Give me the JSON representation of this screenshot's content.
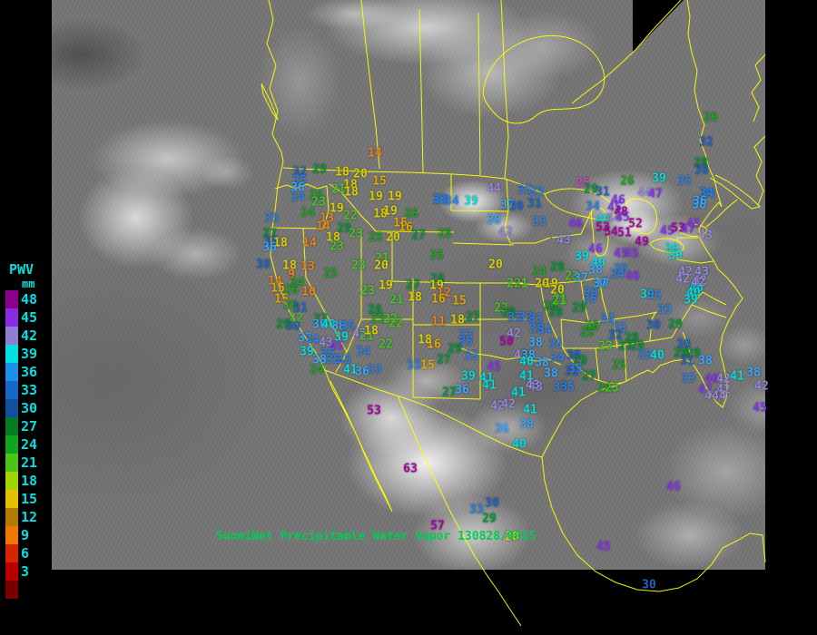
{
  "caption": {
    "text": "SuomiNet Precipitable Water Vapor",
    "timestamp": "130828/0915",
    "color": "#00cc55"
  },
  "legend": {
    "title": "PWV",
    "unit": "mm",
    "text_color": "#00e0e0",
    "entries": [
      {
        "label": "48",
        "color": "#8a008a"
      },
      {
        "label": "45",
        "color": "#8a2be2"
      },
      {
        "label": "42",
        "color": "#8f7fd4"
      },
      {
        "label": "39",
        "color": "#00e0e0"
      },
      {
        "label": "36",
        "color": "#1e8fe8"
      },
      {
        "label": "33",
        "color": "#1668c8"
      },
      {
        "label": "30",
        "color": "#10509e"
      },
      {
        "label": "27",
        "color": "#067d22"
      },
      {
        "label": "24",
        "color": "#12a41e"
      },
      {
        "label": "21",
        "color": "#4cc41c"
      },
      {
        "label": "18",
        "color": "#a4d400"
      },
      {
        "label": "15",
        "color": "#e3c100"
      },
      {
        "label": "12",
        "color": "#b27a00"
      },
      {
        "label": "9",
        "color": "#f07800"
      },
      {
        "label": "6",
        "color": "#d92400"
      },
      {
        "label": "3",
        "color": "#b80000"
      }
    ],
    "extra_swatch_color": "#7a0000"
  },
  "map": {
    "border_color": "#ffff00",
    "background": "#757575"
  },
  "value_colors": [
    {
      "min": 48,
      "color": "#aa00aa"
    },
    {
      "min": 45,
      "color": "#8833ee"
    },
    {
      "min": 42,
      "color": "#9586e0"
    },
    {
      "min": 39,
      "color": "#00dede"
    },
    {
      "min": 36,
      "color": "#35a6ff"
    },
    {
      "min": 33,
      "color": "#2b7fe8"
    },
    {
      "min": 30,
      "color": "#1d64c8"
    },
    {
      "min": 27,
      "color": "#009933"
    },
    {
      "min": 24,
      "color": "#17a61e"
    },
    {
      "min": 21,
      "color": "#46c525"
    },
    {
      "min": 18,
      "color": "#d8cf00"
    },
    {
      "min": 15,
      "color": "#e0a800"
    },
    {
      "min": 9,
      "color": "#e8821a"
    },
    {
      "min": 6,
      "color": "#e03000"
    },
    {
      "min": 3,
      "color": "#c40000"
    },
    {
      "min": 0,
      "color": "#880000"
    }
  ],
  "stations": [
    [
      14,
      413,
      169
    ],
    [
      32,
      330,
      190
    ],
    [
      29,
      352,
      187
    ],
    [
      18,
      377,
      190
    ],
    [
      20,
      397,
      192
    ],
    [
      35,
      330,
      199
    ],
    [
      36,
      328,
      207
    ],
    [
      15,
      418,
      200
    ],
    [
      21,
      373,
      209
    ],
    [
      18,
      386,
      204
    ],
    [
      18,
      387,
      212
    ],
    [
      25,
      348,
      216
    ],
    [
      23,
      351,
      223
    ],
    [
      34,
      328,
      218
    ],
    [
      19,
      414,
      217
    ],
    [
      19,
      435,
      217
    ],
    [
      33,
      486,
      221
    ],
    [
      33,
      299,
      241
    ],
    [
      24,
      339,
      235
    ],
    [
      19,
      371,
      230
    ],
    [
      22,
      386,
      238
    ],
    [
      13,
      360,
      241
    ],
    [
      18,
      419,
      236
    ],
    [
      19,
      430,
      233
    ],
    [
      26,
      453,
      236
    ],
    [
      15,
      441,
      246
    ],
    [
      16,
      447,
      251
    ],
    [
      14,
      356,
      250
    ],
    [
      29,
      379,
      252
    ],
    [
      18,
      367,
      262
    ],
    [
      23,
      392,
      258
    ],
    [
      25,
      414,
      262
    ],
    [
      20,
      433,
      262
    ],
    [
      27,
      461,
      260
    ],
    [
      27,
      297,
      258
    ],
    [
      30,
      299,
      266
    ],
    [
      18,
      309,
      268
    ],
    [
      14,
      341,
      268
    ],
    [
      23,
      371,
      272
    ],
    [
      36,
      297,
      273
    ],
    [
      30,
      290,
      292
    ],
    [
      18,
      319,
      293
    ],
    [
      13,
      339,
      294
    ],
    [
      9,
      321,
      303
    ],
    [
      14,
      303,
      310
    ],
    [
      24,
      327,
      312
    ],
    [
      15,
      306,
      318
    ],
    [
      26,
      321,
      320
    ],
    [
      10,
      340,
      322
    ],
    [
      25,
      364,
      302
    ],
    [
      23,
      395,
      293
    ],
    [
      21,
      421,
      285
    ],
    [
      20,
      420,
      293
    ],
    [
      15,
      310,
      330
    ],
    [
      26,
      320,
      337
    ],
    [
      31,
      331,
      340
    ],
    [
      22,
      326,
      351
    ],
    [
      27,
      353,
      352
    ],
    [
      29,
      312,
      358
    ],
    [
      30,
      323,
      360
    ],
    [
      36,
      352,
      358
    ],
    [
      40,
      362,
      358
    ],
    [
      38,
      373,
      360
    ],
    [
      35,
      383,
      360
    ],
    [
      37,
      336,
      373
    ],
    [
      34,
      344,
      375
    ],
    [
      39,
      376,
      372
    ],
    [
      43,
      359,
      378
    ],
    [
      45,
      371,
      382
    ],
    [
      42,
      396,
      368
    ],
    [
      21,
      404,
      371
    ],
    [
      39,
      338,
      388
    ],
    [
      35,
      361,
      390
    ],
    [
      38,
      352,
      397
    ],
    [
      35,
      367,
      397
    ],
    [
      33,
      379,
      397
    ],
    [
      24,
      349,
      408
    ],
    [
      41,
      386,
      408
    ],
    [
      36,
      399,
      410
    ],
    [
      33,
      413,
      408
    ],
    [
      23,
      405,
      321
    ],
    [
      19,
      425,
      315
    ],
    [
      27,
      455,
      315
    ],
    [
      21,
      437,
      331
    ],
    [
      18,
      457,
      328
    ],
    [
      28,
      413,
      342
    ],
    [
      25,
      416,
      352
    ],
    [
      22,
      430,
      352
    ],
    [
      18,
      409,
      365
    ],
    [
      34,
      400,
      388
    ],
    [
      28,
      482,
      308
    ],
    [
      19,
      481,
      315
    ],
    [
      12,
      489,
      323
    ],
    [
      16,
      483,
      330
    ],
    [
      15,
      506,
      332
    ],
    [
      11,
      483,
      355
    ],
    [
      18,
      504,
      353
    ],
    [
      22,
      436,
      357
    ],
    [
      22,
      425,
      380
    ],
    [
      16,
      478,
      380
    ],
    [
      18,
      468,
      375
    ],
    [
      27,
      521,
      350
    ],
    [
      33,
      513,
      370
    ],
    [
      35,
      513,
      377
    ],
    [
      29,
      501,
      385
    ],
    [
      33,
      519,
      393
    ],
    [
      27,
      489,
      397
    ],
    [
      33,
      456,
      403
    ],
    [
      15,
      471,
      403
    ],
    [
      39,
      516,
      415
    ],
    [
      41,
      536,
      417
    ],
    [
      45,
      544,
      405
    ],
    [
      33,
      484,
      220
    ],
    [
      34,
      498,
      222
    ],
    [
      39,
      519,
      222
    ],
    [
      44,
      544,
      208
    ],
    [
      35,
      578,
      210
    ],
    [
      33,
      591,
      212
    ],
    [
      37,
      559,
      226
    ],
    [
      30,
      569,
      228
    ],
    [
      31,
      589,
      225
    ],
    [
      38,
      544,
      243
    ],
    [
      33,
      594,
      245
    ],
    [
      42,
      557,
      256
    ],
    [
      25,
      490,
      258
    ],
    [
      25,
      481,
      282
    ],
    [
      20,
      546,
      292
    ],
    [
      24,
      594,
      300
    ],
    [
      28,
      614,
      295
    ],
    [
      43,
      621,
      265
    ],
    [
      46,
      634,
      247
    ],
    [
      25,
      642,
      202,
      "#cc44cc"
    ],
    [
      29,
      651,
      209
    ],
    [
      26,
      691,
      200
    ],
    [
      39,
      726,
      197
    ],
    [
      35,
      754,
      200
    ],
    [
      31,
      664,
      212
    ],
    [
      46,
      681,
      221
    ],
    [
      44,
      710,
      213
    ],
    [
      47,
      722,
      214
    ],
    [
      34,
      780,
      214
    ],
    [
      34,
      653,
      228
    ],
    [
      45,
      677,
      229
    ],
    [
      48,
      684,
      234
    ],
    [
      36,
      770,
      226
    ],
    [
      40,
      664,
      242
    ],
    [
      44,
      676,
      241
    ],
    [
      45,
      686,
      240
    ],
    [
      53,
      664,
      251
    ],
    [
      52,
      700,
      247
    ],
    [
      54,
      673,
      256
    ],
    [
      51,
      688,
      257
    ],
    [
      45,
      735,
      255
    ],
    [
      53,
      747,
      252
    ],
    [
      47,
      758,
      253
    ],
    [
      45,
      764,
      247
    ],
    [
      49,
      707,
      267
    ],
    [
      43,
      777,
      260
    ],
    [
      46,
      656,
      275
    ],
    [
      45,
      684,
      280
    ],
    [
      45,
      696,
      280
    ],
    [
      39,
      740,
      274
    ],
    [
      39,
      744,
      282
    ],
    [
      39,
      641,
      283
    ],
    [
      40,
      659,
      290
    ],
    [
      38,
      656,
      298
    ],
    [
      35,
      684,
      297
    ],
    [
      34,
      680,
      303
    ],
    [
      46,
      697,
      305
    ],
    [
      37,
      664,
      313
    ],
    [
      42,
      755,
      300
    ],
    [
      43,
      773,
      300
    ],
    [
      42,
      752,
      308
    ],
    [
      42,
      771,
      310
    ],
    [
      40,
      767,
      318
    ],
    [
      26,
      783,
      130
    ],
    [
      32,
      778,
      157
    ],
    [
      28,
      772,
      180
    ],
    [
      30,
      773,
      188
    ],
    [
      34,
      778,
      213
    ],
    [
      36,
      771,
      222
    ],
    [
      22,
      566,
      313
    ],
    [
      21,
      574,
      313
    ],
    [
      20,
      597,
      313
    ],
    [
      19,
      607,
      313
    ],
    [
      23,
      630,
      305
    ],
    [
      37,
      640,
      307
    ],
    [
      20,
      614,
      320
    ],
    [
      21,
      617,
      330
    ],
    [
      33,
      651,
      323
    ],
    [
      35,
      650,
      330
    ],
    [
      26,
      606,
      338
    ],
    [
      28,
      612,
      345
    ],
    [
      29,
      638,
      340
    ],
    [
      21,
      616,
      332
    ],
    [
      23,
      552,
      340
    ],
    [
      28,
      560,
      345
    ],
    [
      33,
      567,
      350
    ],
    [
      33,
      579,
      350
    ],
    [
      33,
      590,
      352
    ],
    [
      42,
      566,
      368
    ],
    [
      50,
      558,
      377
    ],
    [
      35,
      591,
      363
    ],
    [
      34,
      600,
      364
    ],
    [
      38,
      590,
      378
    ],
    [
      35,
      612,
      380
    ],
    [
      43,
      574,
      392
    ],
    [
      38,
      582,
      392
    ],
    [
      40,
      580,
      399
    ],
    [
      38,
      597,
      400
    ],
    [
      34,
      614,
      395
    ],
    [
      30,
      632,
      392
    ],
    [
      29,
      639,
      398
    ],
    [
      31,
      630,
      410
    ],
    [
      35,
      634,
      407
    ],
    [
      38,
      607,
      412
    ],
    [
      41,
      580,
      415
    ],
    [
      27,
      649,
      415
    ],
    [
      43,
      590,
      427
    ],
    [
      35,
      617,
      427
    ],
    [
      35,
      625,
      427
    ],
    [
      24,
      666,
      428
    ],
    [
      23,
      674,
      428
    ],
    [
      42,
      548,
      448
    ],
    [
      42,
      560,
      446
    ],
    [
      41,
      584,
      452
    ],
    [
      36,
      553,
      473
    ],
    [
      38,
      580,
      468
    ],
    [
      40,
      572,
      490
    ],
    [
      41,
      539,
      425
    ],
    [
      43,
      587,
      425
    ],
    [
      41,
      571,
      433
    ],
    [
      36,
      509,
      430
    ],
    [
      27,
      495,
      433
    ],
    [
      34,
      669,
      352
    ],
    [
      33,
      682,
      362
    ],
    [
      26,
      652,
      360
    ],
    [
      25,
      647,
      367
    ],
    [
      32,
      678,
      370
    ],
    [
      28,
      696,
      373
    ],
    [
      30,
      720,
      359
    ],
    [
      29,
      744,
      358
    ],
    [
      33,
      732,
      342
    ],
    [
      37,
      661,
      313
    ],
    [
      39,
      713,
      325
    ],
    [
      35,
      721,
      326
    ],
    [
      42,
      769,
      312
    ],
    [
      40,
      764,
      323
    ],
    [
      39,
      761,
      331
    ],
    [
      30,
      753,
      380
    ],
    [
      35,
      710,
      392
    ],
    [
      40,
      724,
      392
    ],
    [
      29,
      750,
      390
    ],
    [
      29,
      764,
      390
    ],
    [
      31,
      757,
      398
    ],
    [
      38,
      777,
      398
    ],
    [
      25,
      682,
      403
    ],
    [
      33,
      758,
      418
    ],
    [
      46,
      784,
      418
    ],
    [
      42,
      797,
      418
    ],
    [
      41,
      812,
      415
    ],
    [
      47,
      777,
      430
    ],
    [
      42,
      797,
      430
    ],
    [
      44,
      784,
      437
    ],
    [
      44,
      792,
      437
    ],
    [
      38,
      830,
      411
    ],
    [
      42,
      839,
      426
    ],
    [
      45,
      837,
      450
    ],
    [
      23,
      667,
      382
    ],
    [
      27,
      689,
      382
    ],
    [
      29,
      702,
      382
    ],
    [
      53,
      412,
      453
    ],
    [
      63,
      452,
      517
    ],
    [
      57,
      482,
      580
    ],
    [
      33,
      525,
      562
    ],
    [
      30,
      542,
      555
    ],
    [
      29,
      539,
      572
    ],
    [
      45,
      665,
      603
    ],
    [
      30,
      715,
      645
    ],
    [
      20,
      564,
      592
    ],
    [
      46,
      742,
      537
    ]
  ]
}
